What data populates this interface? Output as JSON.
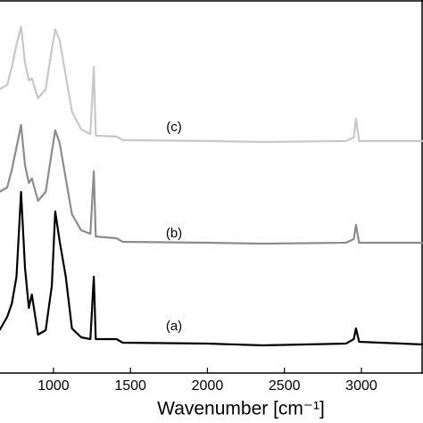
{
  "chart_data": {
    "type": "line",
    "x_label": "Wavenumber [cm⁻¹]",
    "x": [
      650,
      700,
      730,
      760,
      790,
      815,
      840,
      860,
      900,
      950,
      990,
      1012,
      1040,
      1080,
      1120,
      1180,
      1240,
      1262,
      1275,
      1410,
      1450,
      2000,
      2360,
      2900,
      2950,
      2965,
      2985,
      3400
    ],
    "series": [
      {
        "name": "(a)",
        "color": "#000000",
        "values": [
          48,
          63,
          78,
          108,
          203,
          118,
          73,
          88,
          43,
          48,
          98,
          181,
          148,
          108,
          50,
          40,
          38,
          108,
          38,
          38,
          34,
          33,
          31,
          33,
          38,
          50,
          35,
          32
        ]
      },
      {
        "name": "(b)",
        "color": "#8c8c8c",
        "values": [
          203,
          208,
          228,
          253,
          278,
          233,
          213,
          218,
          193,
          203,
          248,
          272,
          258,
          218,
          178,
          160,
          156,
          226,
          153,
          151,
          147,
          146,
          145,
          146,
          150,
          166,
          146,
          146
        ]
      },
      {
        "name": "(c)",
        "color": "#c8c8c8",
        "values": [
          318,
          323,
          343,
          368,
          388,
          348,
          328,
          330,
          308,
          318,
          363,
          385,
          373,
          333,
          293,
          273,
          268,
          343,
          266,
          265,
          261,
          260,
          259,
          260,
          264,
          285,
          260,
          260
        ]
      }
    ],
    "xlim": [
      653,
      3400
    ],
    "xticks": [
      1000,
      1500,
      2000,
      2500,
      3000,
      3500
    ],
    "ylim": [
      0,
      418
    ]
  }
}
